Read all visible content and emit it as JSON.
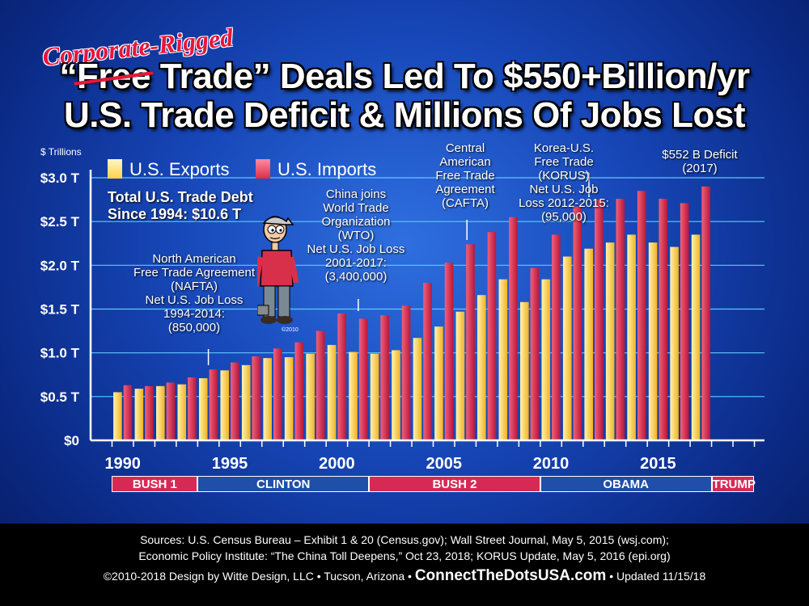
{
  "title": {
    "strike_word": "Free",
    "line1_quote_open": "“",
    "line1_after_strike": " Trade”",
    "line1_rest": " Deals Led To $550+Billion/yr",
    "line2": "U.S. Trade Deficit & Millions Of Jobs Lost",
    "overlay": "Corporate-Rigged"
  },
  "legend": {
    "exports": "U.S. Exports",
    "imports": "U.S. Imports",
    "exports_color": "#ffd24a",
    "imports_color": "#d8304a"
  },
  "annotations": {
    "total_debt": [
      "Total U.S. Trade Debt",
      "Since 1994: $10.6 T"
    ],
    "nafta": [
      "North American",
      "Free Trade Agreement",
      "(NAFTA)",
      "Net U.S. Job Loss",
      "1994-2014:",
      "(850,000)"
    ],
    "china": [
      "China joins",
      "World Trade",
      "Organization",
      "(WTO)",
      "Net U.S. Job Loss",
      "2001-2017:",
      "(3,400,000)"
    ],
    "cafta": [
      "Central",
      "American",
      "Free Trade",
      "Agreement",
      "(CAFTA)"
    ],
    "korus": [
      "Korea-U.S.",
      "Free Trade",
      "(KORUS)",
      "Net U.S. Job",
      "Loss 2012-2015:",
      "(95,000)"
    ],
    "deficit": [
      "$552 B Deficit",
      "(2017)"
    ],
    "copyright_small": "©2010"
  },
  "eras": [
    {
      "label": "BUSH 1",
      "start": 1989,
      "end": 1993,
      "color": "#d62a55"
    },
    {
      "label": "CLINTON",
      "start": 1993,
      "end": 2001,
      "color": "#1f4fa8"
    },
    {
      "label": "BUSH 2",
      "start": 2001,
      "end": 2009,
      "color": "#d62a55"
    },
    {
      "label": "OBAMA",
      "start": 2009,
      "end": 2017,
      "color": "#1f4fa8"
    },
    {
      "label": "TRUMP",
      "start": 2017,
      "end": 2019,
      "color": "#d62a55"
    }
  ],
  "footer": {
    "line1": "Sources: U.S. Census Bureau – Exhibit 1 & 20 (Census.gov); Wall Street Journal, May 5, 2015 (wsj.com);",
    "line2": "Economic Policy Institute: “The China Toll Deepens,” Oct 23, 2018; KORUS Update, May 5, 2016 (epi.org)",
    "line3_a": "©2010-2018 Design by Witte Design, LLC • Tucson, Arizona •",
    "line3_b": "ConnectTheDotsUSA.com",
    "line3_c": "• Updated 11/15/18"
  },
  "chart_data": {
    "type": "bar",
    "ylabel": "$ Trillions",
    "ylim": [
      0,
      3.0
    ],
    "y_ticks": [
      {
        "value": 0,
        "label": "$0"
      },
      {
        "value": 0.5,
        "label": "$0.5 T"
      },
      {
        "value": 1.0,
        "label": "$1.0 T"
      },
      {
        "value": 1.5,
        "label": "$1.5 T"
      },
      {
        "value": 2.0,
        "label": "$2.0 T"
      },
      {
        "value": 2.5,
        "label": "$2.5 T"
      },
      {
        "value": 3.0,
        "label": "$3.0 T"
      }
    ],
    "x_ticks": [
      1990,
      1995,
      2000,
      2005,
      2010,
      2015
    ],
    "xlim": [
      1989,
      2019
    ],
    "grid": true,
    "x": [
      1990,
      1991,
      1992,
      1993,
      1994,
      1995,
      1996,
      1997,
      1998,
      1999,
      2000,
      2001,
      2002,
      2003,
      2004,
      2005,
      2006,
      2007,
      2008,
      2009,
      2010,
      2011,
      2012,
      2013,
      2014,
      2015,
      2016,
      2017
    ],
    "series": [
      {
        "name": "U.S. Exports",
        "values": [
          0.55,
          0.59,
          0.62,
          0.64,
          0.71,
          0.8,
          0.86,
          0.94,
          0.95,
          0.99,
          1.09,
          1.01,
          0.99,
          1.03,
          1.17,
          1.3,
          1.47,
          1.66,
          1.84,
          1.58,
          1.84,
          2.1,
          2.19,
          2.26,
          2.35,
          2.26,
          2.21,
          2.35
        ]
      },
      {
        "name": "U.S. Imports",
        "values": [
          0.63,
          0.62,
          0.66,
          0.72,
          0.81,
          0.89,
          0.96,
          1.05,
          1.12,
          1.25,
          1.45,
          1.39,
          1.43,
          1.54,
          1.8,
          2.03,
          2.24,
          2.38,
          2.55,
          1.97,
          2.35,
          2.67,
          2.75,
          2.76,
          2.85,
          2.76,
          2.71,
          2.9
        ]
      }
    ]
  }
}
